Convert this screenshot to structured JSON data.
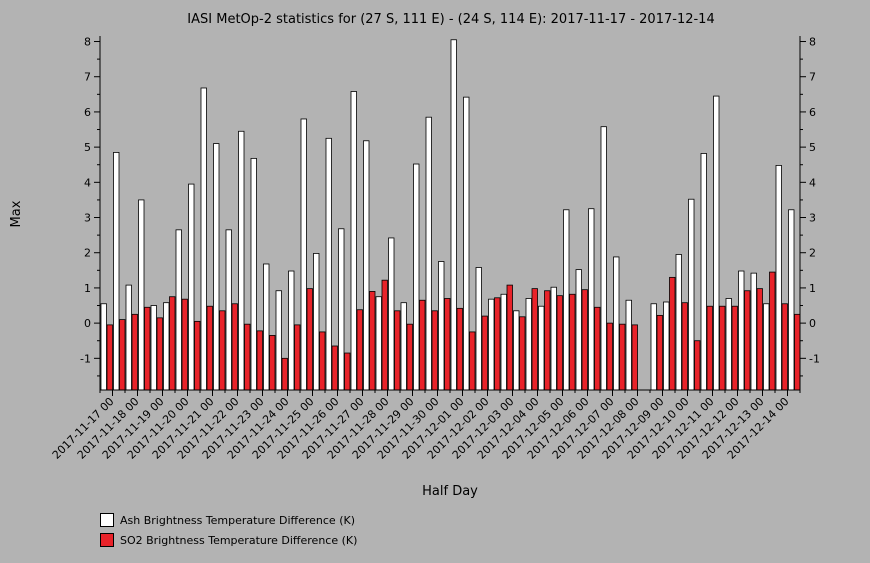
{
  "chart_data": {
    "type": "bar",
    "title": "IASI MetOp-2 statistics for (27 S, 111 E) - (24 S, 114 E): 2017-11-17 - 2017-12-14",
    "xlabel": "Half Day",
    "ylabel": "Max",
    "ylim": [
      -1.9,
      8.1
    ],
    "yticks": [
      -1,
      0,
      1,
      2,
      3,
      4,
      5,
      6,
      7,
      8
    ],
    "grid": false,
    "legend_position": "bottom-left",
    "date_labels": [
      "2017-11-17 00",
      "2017-11-18 00",
      "2017-11-19 00",
      "2017-11-20 00",
      "2017-11-21 00",
      "2017-11-22 00",
      "2017-11-23 00",
      "2017-11-24 00",
      "2017-11-25 00",
      "2017-11-26 00",
      "2017-11-27 00",
      "2017-11-28 00",
      "2017-11-29 00",
      "2017-11-30 00",
      "2017-12-01 00",
      "2017-12-02 00",
      "2017-12-03 00",
      "2017-12-04 00",
      "2017-12-05 00",
      "2017-12-06 00",
      "2017-12-07 00",
      "2017-12-08 00",
      "2017-12-09 00",
      "2017-12-10 00",
      "2017-12-11 00",
      "2017-12-12 00",
      "2017-12-13 00",
      "2017-12-14 00"
    ],
    "series": [
      {
        "name": "Ash Brightness Temperature Difference (K)",
        "color": "#ffffff",
        "values": [
          0.55,
          4.85,
          1.08,
          3.5,
          0.5,
          0.58,
          2.65,
          3.95,
          6.68,
          5.1,
          2.65,
          5.45,
          4.68,
          1.68,
          0.92,
          1.48,
          5.8,
          1.98,
          5.25,
          2.68,
          6.58,
          5.18,
          0.75,
          2.42,
          0.58,
          4.52,
          5.85,
          1.75,
          8.05,
          6.42,
          1.58,
          0.68,
          0.82,
          0.35,
          0.7,
          0.48,
          1.02,
          3.22,
          1.52,
          3.25,
          5.58,
          1.88,
          0.65,
          null,
          0.55,
          0.6,
          1.95,
          3.52,
          4.82,
          6.45,
          0.7,
          1.48,
          1.42,
          0.55,
          4.48,
          3.22
        ]
      },
      {
        "name": "SO2 Brightness Temperature Difference (K)",
        "color": "#e8232a",
        "values": [
          -0.05,
          0.1,
          0.25,
          0.45,
          0.15,
          0.75,
          0.68,
          0.05,
          0.48,
          0.35,
          0.55,
          -0.03,
          -0.22,
          -0.35,
          -1.0,
          -0.05,
          0.98,
          -0.25,
          -0.65,
          -0.85,
          0.38,
          0.9,
          1.22,
          0.35,
          -0.03,
          0.65,
          0.35,
          0.7,
          0.42,
          -0.25,
          0.2,
          0.72,
          1.08,
          0.18,
          0.98,
          0.92,
          0.78,
          0.82,
          0.95,
          0.45,
          0.0,
          -0.03,
          -0.05,
          null,
          0.22,
          1.3,
          0.58,
          -0.5,
          0.48,
          0.48,
          0.48,
          0.92,
          0.98,
          1.45,
          0.55,
          0.25
        ]
      }
    ]
  }
}
